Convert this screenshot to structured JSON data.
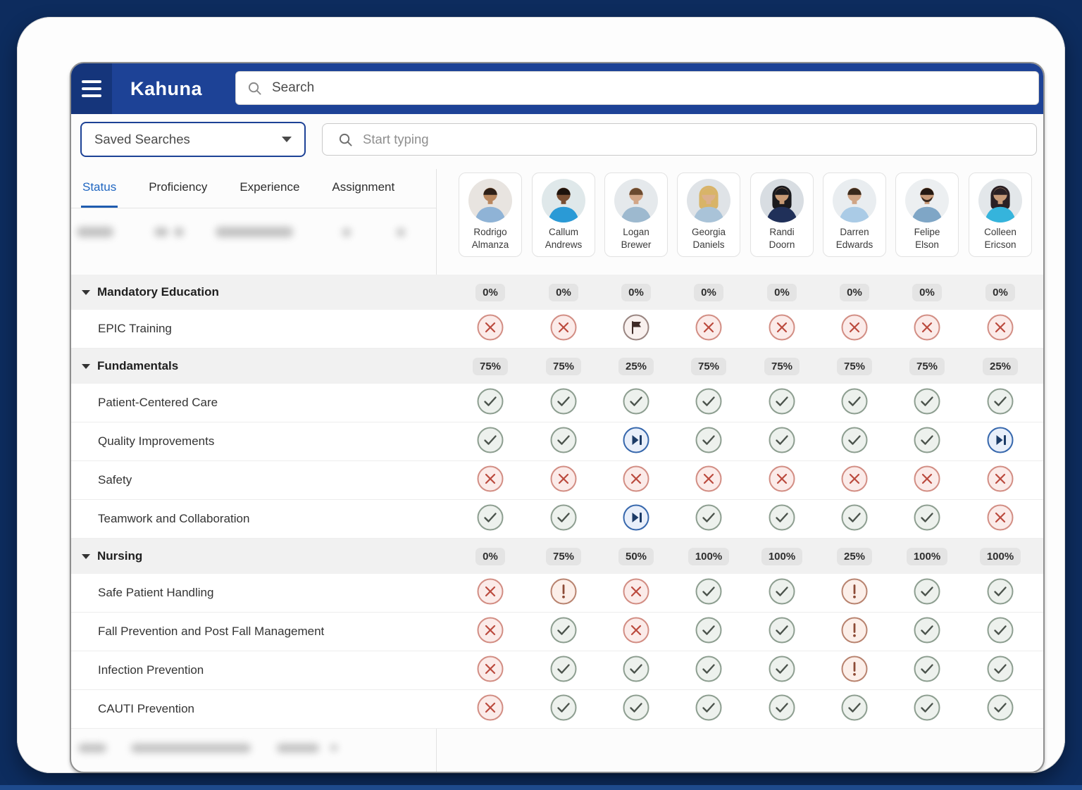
{
  "brand": "Kahuna",
  "header": {
    "search_placeholder": "Search"
  },
  "filters": {
    "saved_searches_label": "Saved Searches",
    "search_placeholder": "Start typing"
  },
  "tabs": [
    {
      "label": "Status",
      "active": true
    },
    {
      "label": "Proficiency",
      "active": false
    },
    {
      "label": "Experience",
      "active": false
    },
    {
      "label": "Assignment",
      "active": false
    }
  ],
  "people": [
    {
      "first": "Rodrigo",
      "last": "Almanza",
      "avatar": {
        "bg": "#e8e4e0",
        "skin": "#b9875f",
        "hair": "#2e2018",
        "scrub": "#8fb3d6",
        "style": "short"
      }
    },
    {
      "first": "Callum",
      "last": "Andrews",
      "avatar": {
        "bg": "#dfe8ea",
        "skin": "#7a4f33",
        "hair": "#1c120c",
        "scrub": "#2a9ad6",
        "style": "short"
      }
    },
    {
      "first": "Logan",
      "last": "Brewer",
      "avatar": {
        "bg": "#e5e9ec",
        "skin": "#d2a687",
        "hair": "#6b4a2f",
        "scrub": "#9db9cf",
        "style": "short"
      }
    },
    {
      "first": "Georgia",
      "last": "Daniels",
      "avatar": {
        "bg": "#dfe3e7",
        "skin": "#dcb08d",
        "hair": "#d8b468",
        "scrub": "#a9c3d8",
        "style": "long"
      }
    },
    {
      "first": "Randi",
      "last": "Doorn",
      "avatar": {
        "bg": "#d8dde2",
        "skin": "#c79a75",
        "hair": "#1a1a1e",
        "scrub": "#203059",
        "style": "long"
      }
    },
    {
      "first": "Darren",
      "last": "Edwards",
      "avatar": {
        "bg": "#e9edf0",
        "skin": "#d0a585",
        "hair": "#3a2a1c",
        "scrub": "#aacbe6",
        "style": "short"
      }
    },
    {
      "first": "Felipe",
      "last": "Elson",
      "avatar": {
        "bg": "#eceff1",
        "skin": "#c89a78",
        "hair": "#241811",
        "scrub": "#7fa6c6",
        "style": "beard"
      }
    },
    {
      "first": "Colleen",
      "last": "Ericson",
      "avatar": {
        "bg": "#e3e7ea",
        "skin": "#c79a78",
        "hair": "#2a2024",
        "scrub": "#35b4dc",
        "style": "long"
      }
    }
  ],
  "status_types": {
    "pass": {
      "meaning": "complete",
      "fill": "#edf1ed",
      "stroke": "#8d9e90",
      "glyph": "#4b534c"
    },
    "fail": {
      "meaning": "not-started",
      "fill": "#fbebe9",
      "stroke": "#d28d83",
      "glyph": "#bb4a3e"
    },
    "warn": {
      "meaning": "attention",
      "fill": "#fcefe9",
      "stroke": "#b8836f",
      "glyph": "#8d4b36"
    },
    "progress": {
      "meaning": "in-progress",
      "fill": "#e9effa",
      "stroke": "#3667ac",
      "glyph": "#1c3b67"
    },
    "flag": {
      "meaning": "flagged",
      "fill": "#f9f1ef",
      "stroke": "#988480",
      "glyph": "#3f2b27"
    }
  },
  "matrix": {
    "groups": [
      {
        "name": "Mandatory Education",
        "percentages": [
          "0%",
          "0%",
          "0%",
          "0%",
          "0%",
          "0%",
          "0%",
          "0%"
        ],
        "skills": [
          {
            "name": "EPIC Training",
            "statuses": [
              "fail",
              "fail",
              "flag",
              "fail",
              "fail",
              "fail",
              "fail",
              "fail"
            ]
          }
        ]
      },
      {
        "name": "Fundamentals",
        "percentages": [
          "75%",
          "75%",
          "25%",
          "75%",
          "75%",
          "75%",
          "75%",
          "25%"
        ],
        "skills": [
          {
            "name": "Patient-Centered Care",
            "statuses": [
              "pass",
              "pass",
              "pass",
              "pass",
              "pass",
              "pass",
              "pass",
              "pass"
            ]
          },
          {
            "name": "Quality Improvements",
            "statuses": [
              "pass",
              "pass",
              "progress",
              "pass",
              "pass",
              "pass",
              "pass",
              "progress"
            ]
          },
          {
            "name": "Safety",
            "statuses": [
              "fail",
              "fail",
              "fail",
              "fail",
              "fail",
              "fail",
              "fail",
              "fail"
            ]
          },
          {
            "name": "Teamwork and Collaboration",
            "statuses": [
              "pass",
              "pass",
              "progress",
              "pass",
              "pass",
              "pass",
              "pass",
              "fail"
            ]
          }
        ]
      },
      {
        "name": "Nursing",
        "percentages": [
          "0%",
          "75%",
          "50%",
          "100%",
          "100%",
          "25%",
          "100%",
          "100%"
        ],
        "skills": [
          {
            "name": "Safe Patient Handling",
            "statuses": [
              "fail",
              "warn",
              "fail",
              "pass",
              "pass",
              "warn",
              "pass",
              "pass"
            ]
          },
          {
            "name": "Fall Prevention and Post Fall Management",
            "statuses": [
              "fail",
              "pass",
              "fail",
              "pass",
              "pass",
              "warn",
              "pass",
              "pass"
            ]
          },
          {
            "name": "Infection Prevention",
            "statuses": [
              "fail",
              "pass",
              "pass",
              "pass",
              "pass",
              "warn",
              "pass",
              "pass"
            ]
          },
          {
            "name": "CAUTI Prevention",
            "statuses": [
              "fail",
              "pass",
              "pass",
              "pass",
              "pass",
              "pass",
              "pass",
              "pass"
            ]
          }
        ]
      }
    ]
  },
  "theme": {
    "page_bg": "#0d2c5e",
    "header_bg": "#1d4296",
    "header_menu_bg": "#15357b",
    "accent_blue": "#1f66c1",
    "category_row_bg": "#f1f1f1",
    "badge_bg": "#e4e4e4"
  }
}
